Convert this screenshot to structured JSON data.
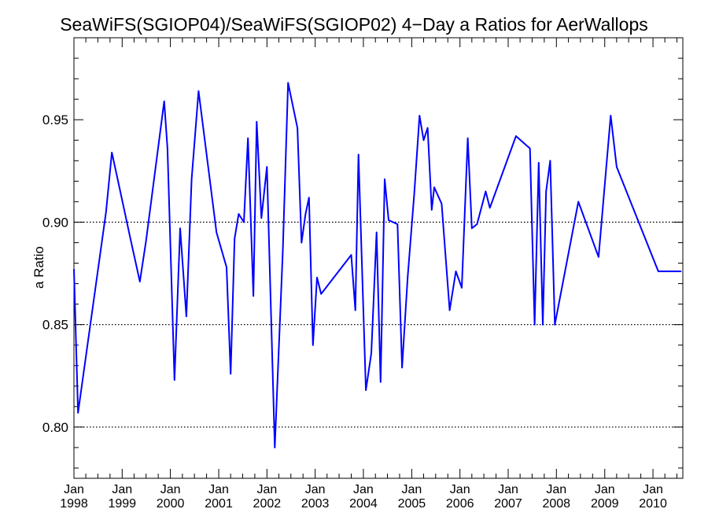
{
  "chart_data": {
    "type": "line",
    "title": "SeaWiFS(SGIOP04)/SeaWiFS(SGIOP02) 4−Day a Ratios for AerWallops",
    "ylabel": "a Ratio",
    "xlabel": "",
    "xlim": [
      "1998-01-01",
      "2010-08-15"
    ],
    "ylim": [
      0.775,
      0.99
    ],
    "yticks": [
      0.8,
      0.85,
      0.9,
      0.95
    ],
    "ytick_labels": [
      "0.80",
      "0.85",
      "0.90",
      "0.95"
    ],
    "reference_lines": [
      0.8,
      0.85,
      0.9
    ],
    "x_tick_labels": [
      {
        "month": "Jan",
        "year": "1998",
        "date": "1998-01-01"
      },
      {
        "month": "Jan",
        "year": "1999",
        "date": "1999-01-01"
      },
      {
        "month": "Jan",
        "year": "2000",
        "date": "2000-01-01"
      },
      {
        "month": "Jan",
        "year": "2001",
        "date": "2001-01-01"
      },
      {
        "month": "Jan",
        "year": "2002",
        "date": "2002-01-01"
      },
      {
        "month": "Jan",
        "year": "2003",
        "date": "2003-01-01"
      },
      {
        "month": "Jan",
        "year": "2004",
        "date": "2004-01-01"
      },
      {
        "month": "Jan",
        "year": "2005",
        "date": "2005-01-01"
      },
      {
        "month": "Jan",
        "year": "2006",
        "date": "2006-01-01"
      },
      {
        "month": "Jan",
        "year": "2007",
        "date": "2007-01-01"
      },
      {
        "month": "Jan",
        "year": "2008",
        "date": "2008-01-01"
      },
      {
        "month": "Jan",
        "year": "2009",
        "date": "2009-01-01"
      },
      {
        "month": "Jan",
        "year": "2010",
        "date": "2010-01-01"
      }
    ],
    "series": [
      {
        "color": "#0000ff",
        "x": [
          "1998-01-01",
          "1998-02-01",
          "1998-09-01",
          "1998-10-15",
          "1998-12-01",
          "1999-03-01",
          "1999-05-15",
          "1999-07-01",
          "1999-11-15",
          "1999-12-10",
          "2000-02-01",
          "2000-03-15",
          "2000-05-01",
          "2000-06-10",
          "2000-08-01",
          "2000-12-15",
          "2001-03-01",
          "2001-04-01",
          "2001-05-01",
          "2001-06-01",
          "2001-07-10",
          "2001-08-10",
          "2001-09-20",
          "2001-10-15",
          "2001-11-20",
          "2002-01-01",
          "2002-03-01",
          "2002-05-01",
          "2002-06-10",
          "2002-08-20",
          "2002-09-20",
          "2002-10-20",
          "2002-11-15",
          "2002-12-15",
          "2003-01-15",
          "2003-02-15",
          "2003-10-01",
          "2003-11-01",
          "2003-11-25",
          "2004-01-20",
          "2004-03-01",
          "2004-04-10",
          "2004-05-10",
          "2004-06-10",
          "2004-07-10",
          "2004-09-15",
          "2004-10-20",
          "2004-12-01",
          "2005-01-20",
          "2005-03-01",
          "2005-04-01",
          "2005-05-01",
          "2005-06-01",
          "2005-06-20",
          "2005-08-15",
          "2005-10-15",
          "2005-12-01",
          "2006-01-15",
          "2006-03-01",
          "2006-04-01",
          "2006-05-10",
          "2006-07-15",
          "2006-08-15",
          "2007-03-01",
          "2007-06-15",
          "2007-07-20",
          "2007-08-20",
          "2007-09-20",
          "2007-10-15",
          "2007-11-15",
          "2007-12-20",
          "2008-06-15",
          "2008-11-15",
          "2009-02-15",
          "2009-04-01",
          "2010-02-10",
          "2010-04-01",
          "2010-07-10",
          "2010-08-01"
        ],
        "values": [
          0.877,
          0.807,
          0.905,
          0.934,
          0.92,
          0.893,
          0.871,
          0.891,
          0.959,
          0.936,
          0.823,
          0.897,
          0.854,
          0.921,
          0.964,
          0.895,
          0.878,
          0.826,
          0.892,
          0.904,
          0.9,
          0.941,
          0.864,
          0.949,
          0.902,
          0.927,
          0.79,
          0.886,
          0.968,
          0.946,
          0.89,
          0.904,
          0.912,
          0.84,
          0.873,
          0.865,
          0.884,
          0.857,
          0.933,
          0.818,
          0.836,
          0.895,
          0.822,
          0.921,
          0.901,
          0.899,
          0.829,
          0.873,
          0.914,
          0.952,
          0.94,
          0.946,
          0.906,
          0.917,
          0.909,
          0.857,
          0.876,
          0.868,
          0.941,
          0.897,
          0.899,
          0.915,
          0.907,
          0.942,
          0.936,
          0.85,
          0.929,
          0.85,
          0.915,
          0.93,
          0.85,
          0.91,
          0.883,
          0.952,
          0.927,
          0.876,
          0.876,
          0.876,
          0.876
        ]
      }
    ]
  }
}
